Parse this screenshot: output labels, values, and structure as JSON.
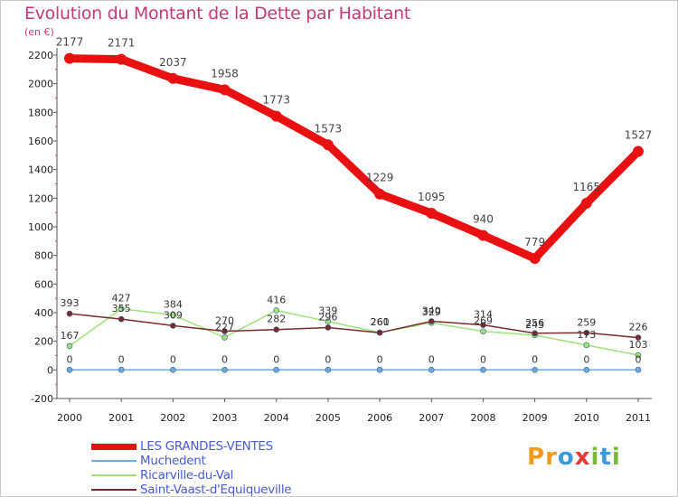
{
  "header": {
    "title": "Evolution du Montant de la Dette par Habitant",
    "unit": "(en €)"
  },
  "logo": {
    "letters": [
      "P",
      "r",
      "o",
      "x",
      "i",
      "t",
      "i"
    ],
    "colors": [
      "#f29a1f",
      "#f29a1f",
      "#3c9ad6",
      "#e23a3a",
      "#7ab83a",
      "#3c9ad6",
      "#7ab83a"
    ]
  },
  "chart_data": {
    "type": "line",
    "title": "Evolution du Montant de la Dette par Habitant",
    "ylabel": "(en €)",
    "xlabel": "",
    "x": [
      "2000",
      "2001",
      "2002",
      "2003",
      "2004",
      "2005",
      "2006",
      "2007",
      "2008",
      "2009",
      "2010",
      "2011"
    ],
    "ylim": [
      -200,
      2200
    ],
    "yticks": [
      -200,
      0,
      200,
      400,
      600,
      800,
      1000,
      1200,
      1400,
      1600,
      1800,
      2000,
      2200
    ],
    "grid": false,
    "legend_position": "bottom-left",
    "series": [
      {
        "name": "LES GRANDES-VENTES",
        "color": "#e81010",
        "values": [
          2177,
          2171,
          2037,
          1958,
          1773,
          1573,
          1229,
          1095,
          940,
          779,
          1165,
          1527
        ]
      },
      {
        "name": "Muchedent",
        "color": "#6fa8d8",
        "values": [
          0,
          0,
          0,
          0,
          0,
          0,
          0,
          0,
          0,
          0,
          0,
          0
        ]
      },
      {
        "name": "Ricarville-du-Val",
        "color": "#9fe07a",
        "values": [
          167,
          427,
          384,
          227,
          416,
          339,
          261,
          329,
          269,
          243,
          173,
          103
        ]
      },
      {
        "name": "Saint-Vaast-d'Equiqueville",
        "color": "#7a2a2a",
        "values": [
          393,
          355,
          309,
          270,
          282,
          296,
          260,
          340,
          314,
          256,
          259,
          226
        ]
      }
    ]
  }
}
